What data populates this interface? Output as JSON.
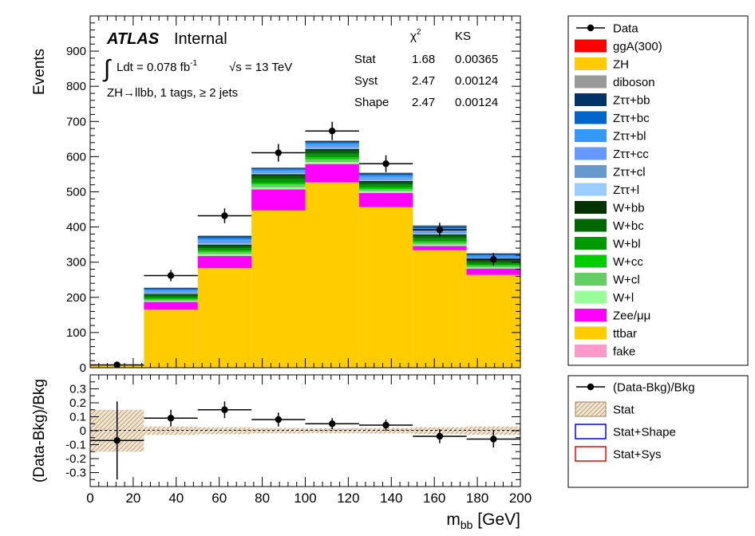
{
  "chart_data": [
    {
      "type": "bar",
      "stacked": true,
      "x_bin_edges": [
        0,
        25,
        50,
        75,
        100,
        125,
        150,
        175,
        200
      ],
      "ylabel": "Events",
      "ylim": [
        0,
        1000
      ],
      "y_ticks": [
        0,
        100,
        200,
        300,
        400,
        500,
        600,
        700,
        800,
        900
      ],
      "series": [
        {
          "name": "ttbar",
          "values": [
            7,
            165,
            283,
            447,
            527,
            457,
            334,
            264
          ]
        },
        {
          "name": "Zee/μμ",
          "values": [
            2,
            22,
            35,
            60,
            52,
            40,
            12,
            18
          ]
        },
        {
          "name": "W+l",
          "values": [
            0,
            3,
            5,
            6,
            6,
            5,
            4,
            3
          ]
        },
        {
          "name": "W+cl",
          "values": [
            0,
            4,
            6,
            8,
            8,
            6,
            6,
            4
          ]
        },
        {
          "name": "W+cc",
          "values": [
            0,
            3,
            4,
            5,
            5,
            4,
            4,
            3
          ]
        },
        {
          "name": "W+bl",
          "values": [
            0,
            5,
            7,
            10,
            10,
            8,
            8,
            6
          ]
        },
        {
          "name": "W+bc",
          "values": [
            0,
            5,
            6,
            9,
            9,
            7,
            7,
            5
          ]
        },
        {
          "name": "W+bb",
          "values": [
            0,
            3,
            4,
            5,
            5,
            4,
            4,
            3
          ]
        },
        {
          "name": "Zττ+l",
          "values": [
            0,
            2,
            3,
            3,
            3,
            3,
            3,
            2
          ]
        },
        {
          "name": "Zττ+cl",
          "values": [
            0,
            3,
            4,
            3,
            4,
            4,
            4,
            3
          ]
        },
        {
          "name": "Zττ+cc",
          "values": [
            0,
            3,
            4,
            3,
            4,
            4,
            4,
            3
          ]
        },
        {
          "name": "Zττ+bl",
          "values": [
            0,
            4,
            6,
            4,
            5,
            5,
            6,
            5
          ]
        },
        {
          "name": "Zττ+bc",
          "values": [
            0,
            3,
            4,
            3,
            3,
            3,
            4,
            3
          ]
        },
        {
          "name": "Zττ+bb",
          "values": [
            0,
            2,
            3,
            2,
            3,
            3,
            3,
            2
          ]
        },
        {
          "name": "diboson",
          "values": [
            0,
            1,
            2,
            1,
            2,
            2,
            2,
            2
          ]
        },
        {
          "name": "ZH",
          "values": [
            0,
            0,
            0,
            0,
            0,
            0,
            0,
            0
          ]
        },
        {
          "name": "ggA(300)",
          "values": [
            0,
            0,
            0,
            0,
            0,
            0,
            0,
            0
          ]
        },
        {
          "name": "fake",
          "values": [
            0,
            0,
            0,
            0,
            0,
            0,
            0,
            0
          ]
        }
      ],
      "data": {
        "name": "Data",
        "x": [
          12.5,
          37.5,
          62.5,
          87.5,
          112.5,
          137.5,
          162.5,
          187.5
        ],
        "y": [
          8,
          262,
          432,
          611,
          673,
          580,
          392,
          308
        ],
        "yerr": [
          3,
          16,
          21,
          25,
          26,
          24,
          20,
          18
        ]
      },
      "legend_position": "right"
    },
    {
      "type": "scatter",
      "xlabel": "m_bb [GeV]",
      "ylabel": "(Data-Bkg)/Bkg",
      "xlim": [
        0,
        200
      ],
      "ylim": [
        -0.4,
        0.4
      ],
      "x_ticks": [
        0,
        20,
        40,
        60,
        80,
        100,
        120,
        140,
        160,
        180,
        200
      ],
      "y_ticks": [
        -0.3,
        -0.2,
        -0.1,
        0,
        0.1,
        0.2,
        0.3
      ],
      "series": [
        {
          "name": "(Data-Bkg)/Bkg",
          "x": [
            12.5,
            37.5,
            62.5,
            87.5,
            112.5,
            137.5,
            162.5,
            187.5
          ],
          "y": [
            -0.07,
            0.09,
            0.15,
            0.08,
            0.05,
            0.04,
            -0.04,
            -0.06
          ],
          "yerr": [
            0.28,
            0.06,
            0.06,
            0.05,
            0.04,
            0.04,
            0.05,
            0.06
          ]
        }
      ],
      "stat_band": [
        0.15,
        0.03,
        0.025,
        0.02,
        0.018,
        0.02,
        0.025,
        0.03
      ],
      "legend_position": "right"
    }
  ],
  "labels": {
    "atlas": "ATLAS",
    "internal": "Internal",
    "lumi": "Ldt = 0.078 fb",
    "lumi_exp": "-1",
    "energy": "√s = 13 TeV",
    "region": "ZH→llbb, 1 tags, ≥ 2 jets",
    "upper_ylabel": "Events",
    "lower_ylabel": "(Data-Bkg)/Bkg",
    "xlabel_main": "m",
    "xlabel_sub": "bb",
    "xlabel_unit": " [GeV]"
  },
  "stats_table": {
    "header": [
      "χ",
      "KS"
    ],
    "chi_sup": "2",
    "rows": [
      {
        "label": "Stat",
        "chi2": "1.68",
        "ks": "0.00365"
      },
      {
        "label": "Syst",
        "chi2": "2.47",
        "ks": "0.00124"
      },
      {
        "label": "Shape",
        "chi2": "2.47",
        "ks": "0.00124"
      }
    ]
  },
  "legend_main": [
    {
      "label": "Data",
      "kind": "marker"
    },
    {
      "label": "ggA(300)",
      "color": "#ff0000"
    },
    {
      "label": "ZH",
      "color": "#ffcc00"
    },
    {
      "label": "diboson",
      "color": "#999999"
    },
    {
      "label": "Zττ+bb",
      "color": "#003366"
    },
    {
      "label": "Zττ+bc",
      "color": "#0066cc"
    },
    {
      "label": "Zττ+bl",
      "color": "#3399ff"
    },
    {
      "label": "Zττ+cc",
      "color": "#6699ff"
    },
    {
      "label": "Zττ+cl",
      "color": "#6699cc"
    },
    {
      "label": "Zττ+l",
      "color": "#99ccff"
    },
    {
      "label": "W+bb",
      "color": "#003300"
    },
    {
      "label": "W+bc",
      "color": "#006600"
    },
    {
      "label": "W+bl",
      "color": "#009900"
    },
    {
      "label": "W+cc",
      "color": "#00cc00"
    },
    {
      "label": "W+cl",
      "color": "#66cc66"
    },
    {
      "label": "W+l",
      "color": "#99ff99"
    },
    {
      "label": "Zee/μμ",
      "color": "#ff00ff"
    },
    {
      "label": "ttbar",
      "color": "#ffcc00"
    },
    {
      "label": "fake",
      "color": "#ff99cc"
    }
  ],
  "legend_ratio": [
    {
      "label": "(Data-Bkg)/Bkg",
      "kind": "marker"
    },
    {
      "label": "Stat",
      "kind": "hatch"
    },
    {
      "label": "Stat+Shape",
      "kind": "outline",
      "color": "#0000ff"
    },
    {
      "label": "Stat+Sys",
      "kind": "outline",
      "color": "#ff0000"
    }
  ]
}
